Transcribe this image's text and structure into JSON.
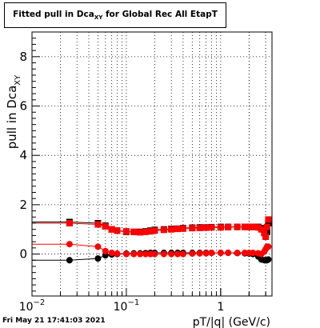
{
  "title": {
    "prefix": "Fitted pull in Dca",
    "sub": "XY",
    "suffix": " for Global Rec All EtapT"
  },
  "footer": {
    "timestamp": "Fri May 21 17:41:03 2021"
  },
  "chart_data": {
    "type": "scatter",
    "title": "Fitted pull in DcaXY for Global Rec All EtapT",
    "xlabel": "pT/|q| (GeV/c)",
    "ylabel": "pull in DcaXY",
    "xscale": "log",
    "xlim": [
      0.01,
      3.5
    ],
    "ylim": [
      -1.7,
      9.0
    ],
    "grid": true,
    "x": [
      0.025,
      0.05,
      0.06,
      0.07,
      0.08,
      0.1,
      0.12,
      0.14,
      0.16,
      0.18,
      0.2,
      0.25,
      0.3,
      0.35,
      0.4,
      0.5,
      0.6,
      0.7,
      0.8,
      1.0,
      1.2,
      1.5,
      1.8,
      2.0,
      2.2,
      2.5,
      2.7,
      2.9,
      3.0,
      3.1,
      3.2
    ],
    "series": [
      {
        "marker": "square",
        "color": "#000000",
        "values": [
          1.3,
          1.25,
          1.15,
          1.0,
          0.95,
          0.9,
          0.9,
          0.9,
          0.92,
          0.95,
          0.98,
          1.0,
          1.02,
          1.03,
          1.05,
          1.07,
          1.08,
          1.08,
          1.09,
          1.1,
          1.1,
          1.1,
          1.1,
          1.1,
          1.1,
          1.1,
          1.05,
          0.9,
          0.75,
          0.9,
          1.25
        ]
      },
      {
        "marker": "square",
        "color": "#ff0000",
        "values": [
          1.25,
          1.2,
          1.12,
          1.0,
          0.95,
          0.92,
          0.9,
          0.88,
          0.9,
          0.92,
          0.95,
          0.98,
          1.0,
          1.02,
          1.03,
          1.05,
          1.06,
          1.07,
          1.08,
          1.08,
          1.09,
          1.1,
          1.1,
          1.1,
          1.1,
          1.08,
          1.0,
          0.85,
          0.7,
          1.1,
          1.4
        ]
      },
      {
        "marker": "circle",
        "color": "#000000",
        "values": [
          -0.25,
          -0.18,
          -0.05,
          -0.02,
          0.0,
          0.02,
          0.03,
          0.03,
          0.04,
          0.05,
          0.05,
          0.05,
          0.05,
          0.05,
          0.05,
          0.05,
          0.05,
          0.05,
          0.05,
          0.05,
          0.05,
          0.04,
          0.03,
          0.02,
          0.0,
          -0.1,
          -0.22,
          -0.25,
          -0.25,
          -0.25,
          -0.22
        ]
      },
      {
        "marker": "circle",
        "color": "#ff0000",
        "values": [
          0.4,
          0.3,
          0.12,
          0.05,
          0.02,
          0.0,
          0.0,
          0.0,
          0.0,
          0.0,
          0.0,
          0.0,
          0.0,
          0.0,
          0.0,
          0.02,
          0.03,
          0.03,
          0.05,
          0.05,
          0.05,
          0.05,
          0.05,
          0.05,
          0.05,
          0.03,
          0.0,
          0.1,
          0.2,
          0.3,
          0.3
        ]
      }
    ]
  }
}
